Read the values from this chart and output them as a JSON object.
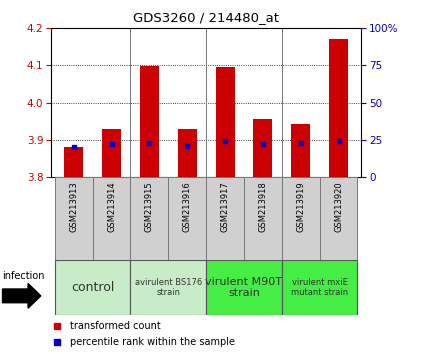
{
  "title": "GDS3260 / 214480_at",
  "samples": [
    "GSM213913",
    "GSM213914",
    "GSM213915",
    "GSM213916",
    "GSM213917",
    "GSM213918",
    "GSM213919",
    "GSM213920"
  ],
  "transformed_counts": [
    3.88,
    3.93,
    4.098,
    3.93,
    4.097,
    3.956,
    3.943,
    4.17
  ],
  "percentile_ranks": [
    20,
    22,
    23,
    21,
    24,
    22,
    23,
    24
  ],
  "ylim_left": [
    3.8,
    4.2
  ],
  "ylim_right": [
    0,
    100
  ],
  "yticks_left": [
    3.8,
    3.9,
    4.0,
    4.1,
    4.2
  ],
  "yticks_right": [
    0,
    25,
    50,
    75,
    100
  ],
  "bar_color": "#cc0000",
  "percentile_color": "#0000cc",
  "bar_bottom": 3.8,
  "group_ranges": [
    [
      0,
      1
    ],
    [
      2,
      3
    ],
    [
      4,
      5
    ],
    [
      6,
      7
    ]
  ],
  "group_colors": [
    "#c8ecc8",
    "#c8ecc8",
    "#44ee44",
    "#44ee44"
  ],
  "group_labels": [
    "control",
    "avirulent BS176\nstrain",
    "virulent M90T\nstrain",
    "virulent mxiE\nmutant strain"
  ],
  "group_label_sizes": [
    9,
    6,
    8,
    6
  ],
  "infection_label": "infection",
  "grid_color": "#000000",
  "tick_label_color_left": "#cc0000",
  "tick_label_color_right": "#0000cc",
  "sample_box_color": "#d0d0d0",
  "legend_items": [
    {
      "color": "#cc0000",
      "label": "transformed count"
    },
    {
      "color": "#0000cc",
      "label": "percentile rank within the sample"
    }
  ]
}
